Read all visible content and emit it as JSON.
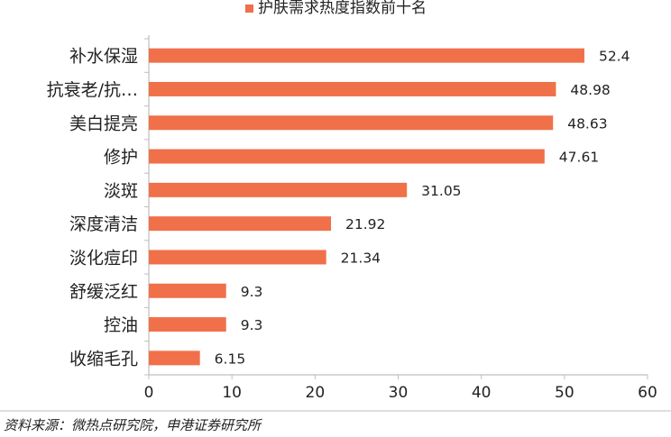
{
  "chart_data": {
    "type": "bar",
    "orientation": "horizontal",
    "categories": [
      "补水保湿",
      "抗衰老/抗…",
      "美白提亮",
      "修护",
      "淡斑",
      "深度清洁",
      "淡化痘印",
      "舒缓泛红",
      "控油",
      "收缩毛孔"
    ],
    "series": [
      {
        "name": "护肤需求热度指数前十名",
        "values": [
          52.4,
          48.98,
          48.63,
          47.61,
          31.05,
          21.92,
          21.34,
          9.3,
          9.3,
          6.15
        ],
        "value_labels": [
          "52.4",
          "48.98",
          "48.63",
          "47.61",
          "31.05",
          "21.92",
          "21.34",
          "9.3",
          "9.3",
          "6.15"
        ],
        "color": "#F0704A"
      }
    ],
    "xlim": [
      0,
      60
    ],
    "xticks": [
      0,
      10,
      20,
      30,
      40,
      50,
      60
    ],
    "grid": false,
    "legend_position": "top"
  },
  "source": "资料来源：微热点研究院，申港证券研究所",
  "colors": {
    "bar": "#F0704A",
    "axis": "#BFBFBF",
    "text": "#222222"
  }
}
